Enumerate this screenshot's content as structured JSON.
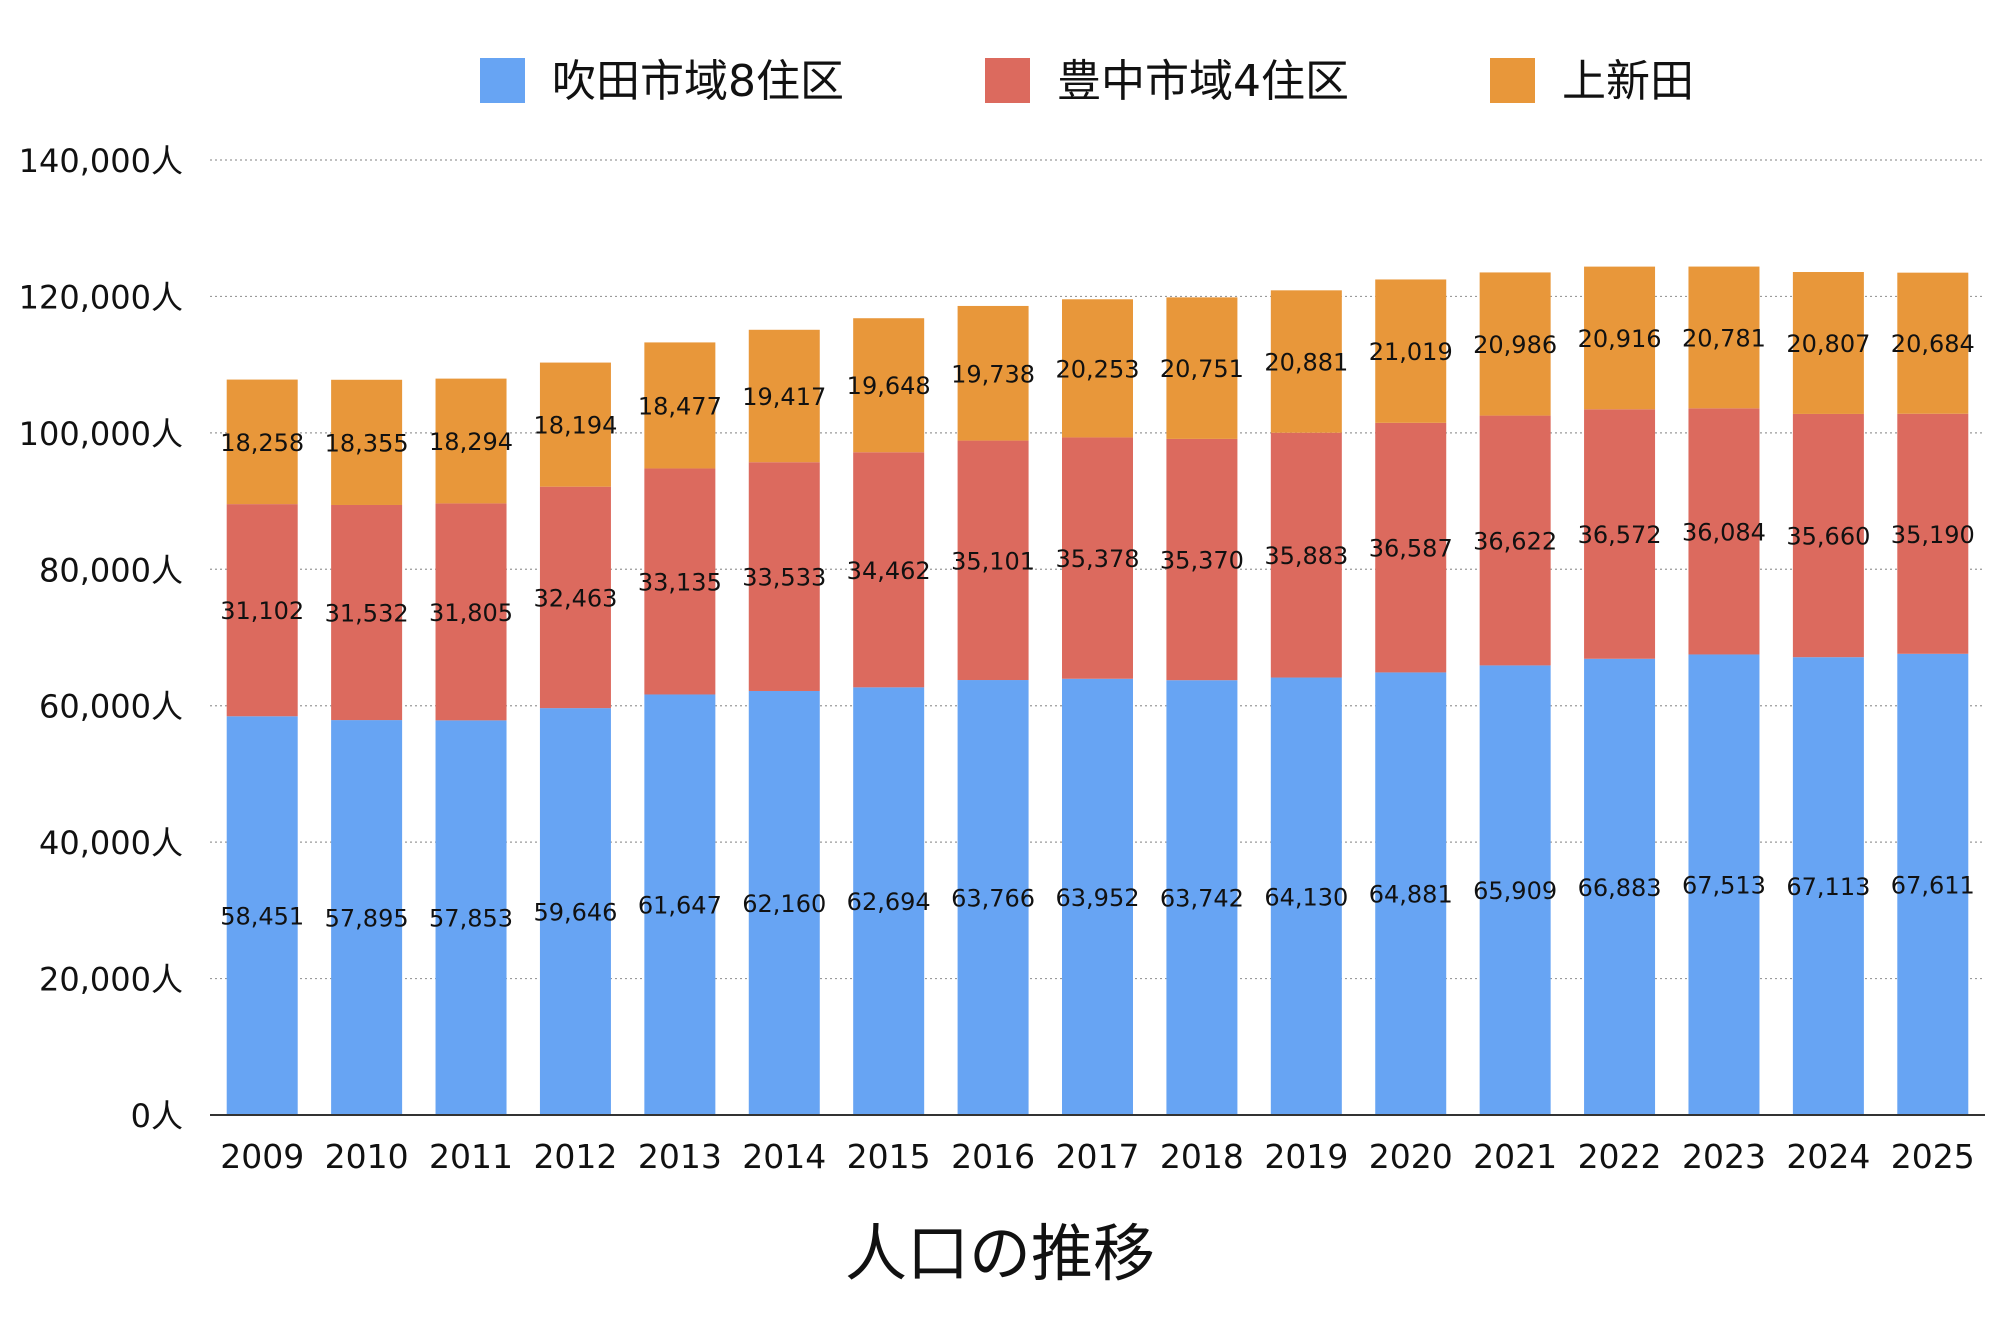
{
  "chart_data": {
    "type": "bar",
    "stacked": true,
    "title": "人口の推移",
    "categories": [
      "2009",
      "2010",
      "2011",
      "2012",
      "2013",
      "2014",
      "2015",
      "2016",
      "2017",
      "2018",
      "2019",
      "2020",
      "2021",
      "2022",
      "2023",
      "2024",
      "2025"
    ],
    "series": [
      {
        "name": "吹田市域8住区",
        "color": "#67a4f3",
        "values": [
          58451,
          57895,
          57853,
          59646,
          61647,
          62160,
          62694,
          63766,
          63952,
          63742,
          64130,
          64881,
          65909,
          66883,
          67513,
          67113,
          67611
        ]
      },
      {
        "name": "豊中市域4住区",
        "color": "#dc6a5e",
        "values": [
          31102,
          31532,
          31805,
          32463,
          33135,
          33533,
          34462,
          35101,
          35378,
          35370,
          35883,
          36587,
          36622,
          36572,
          36084,
          35660,
          35190
        ]
      },
      {
        "name": "上新田",
        "color": "#e8973a",
        "values": [
          18258,
          18355,
          18294,
          18194,
          18477,
          19417,
          19648,
          19738,
          20253,
          20751,
          20881,
          21019,
          20986,
          20916,
          20781,
          20807,
          20684
        ]
      }
    ],
    "ylim": [
      0,
      140000
    ],
    "yticks": [
      "0人",
      "20,000人",
      "40,000人",
      "60,000人",
      "80,000人",
      "100,000人",
      "120,000人",
      "140,000人"
    ],
    "ytick_values": [
      0,
      20000,
      40000,
      60000,
      80000,
      100000,
      120000,
      140000
    ],
    "grid": true,
    "legend_position": "top"
  }
}
